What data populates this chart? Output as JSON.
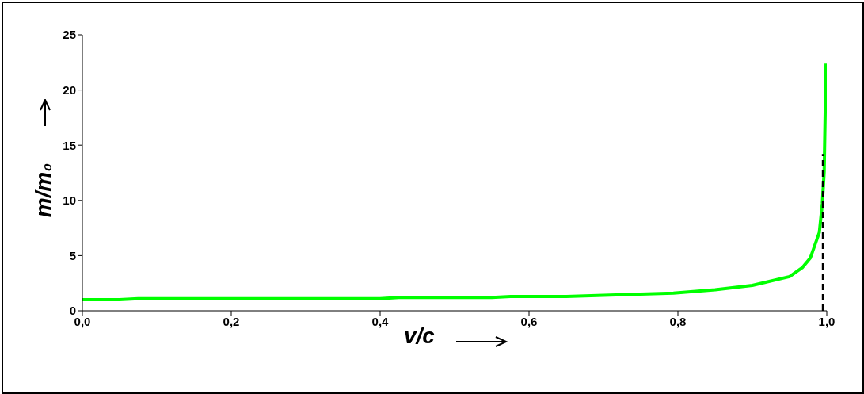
{
  "chart_data": {
    "type": "line",
    "xlabel": "v/c",
    "ylabel": "m/m₀",
    "xlim": [
      0,
      1
    ],
    "ylim": [
      0,
      25
    ],
    "xticks": [
      {
        "value": 0,
        "label": "0,0"
      },
      {
        "value": 0.2,
        "label": "0,2"
      },
      {
        "value": 0.4,
        "label": "0,4"
      },
      {
        "value": 0.6,
        "label": "0,6"
      },
      {
        "value": 0.8,
        "label": "0,8"
      },
      {
        "value": 1,
        "label": "1,0"
      }
    ],
    "yticks": [
      0,
      5,
      10,
      15,
      20,
      25
    ],
    "marker": "none",
    "series": [
      {
        "color": "#00ff00",
        "line_style": "solid",
        "x": [
          0,
          0.05,
          0.075,
          0.4,
          0.425,
          0.55,
          0.575,
          0.65,
          0.7,
          0.75,
          0.794,
          0.85,
          0.9,
          0.95,
          0.967,
          0.978,
          0.99,
          0.994,
          0.9965,
          0.999
        ],
        "values": [
          1.0,
          1.0,
          1.1,
          1.1,
          1.2,
          1.2,
          1.3,
          1.3,
          1.4,
          1.5,
          1.6,
          1.9,
          2.3,
          3.1,
          3.9,
          4.8,
          7.1,
          9.7,
          12.6,
          22.4
        ]
      },
      {
        "color": "#000000",
        "line_style": "dashed",
        "x": [
          0.995,
          0.995
        ],
        "values": [
          0,
          14.2
        ]
      }
    ]
  }
}
